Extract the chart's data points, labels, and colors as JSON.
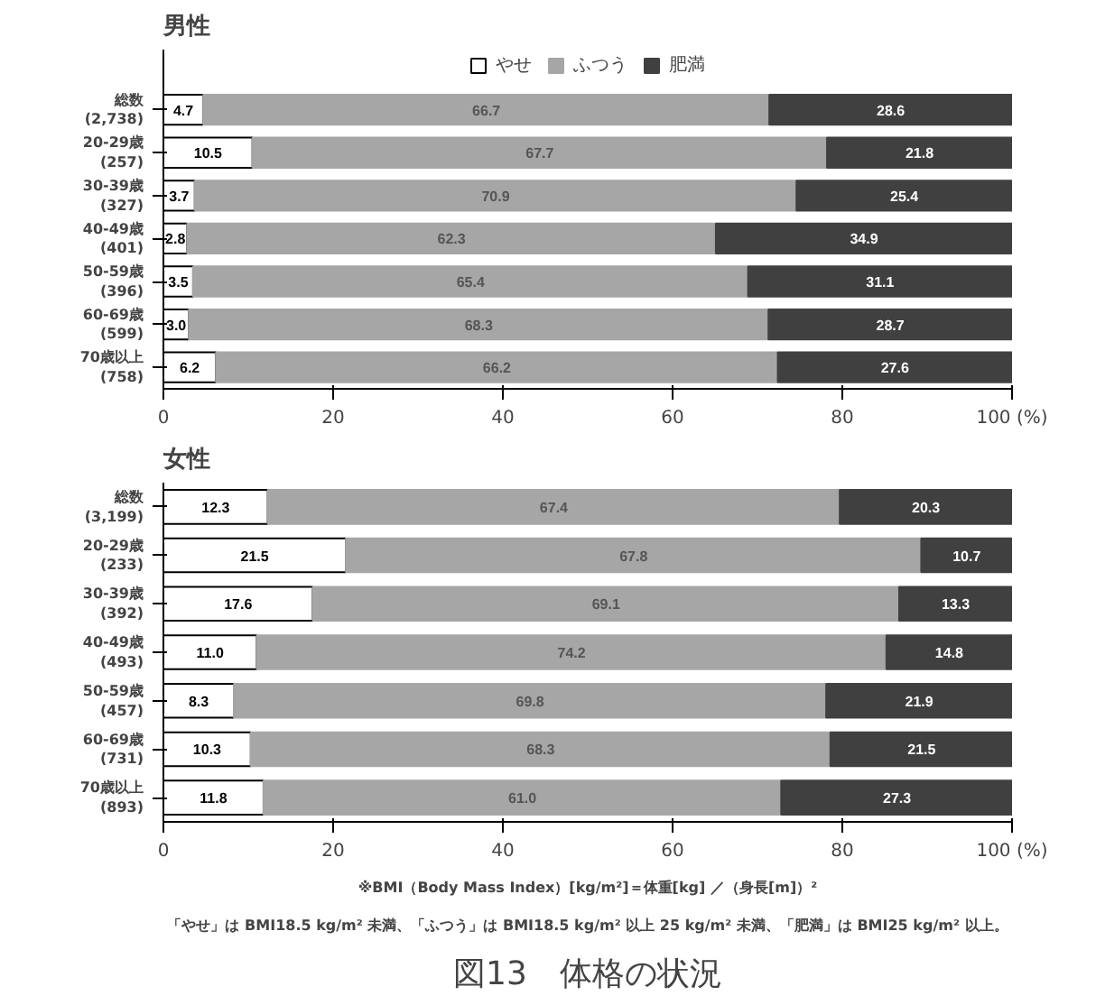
{
  "chart_data": [
    {
      "type": "bar",
      "orientation": "horizontal",
      "stacked": true,
      "title": "男性",
      "legend": "top",
      "data_labels": true,
      "grid": false,
      "categories": [
        "総数\n(2,738)",
        "20-29歳\n(257)",
        "30-39歳\n(327)",
        "40-49歳\n(401)",
        "50-59歳\n(396)",
        "60-69歳\n(599)",
        "70歳以上\n(758)"
      ],
      "xlim": [
        0,
        100
      ],
      "xticks": [
        0,
        20,
        40,
        60,
        80,
        {
          "value": 100,
          "label": "100 (%)"
        }
      ],
      "series": [
        {
          "name": "やせ",
          "color": "#ffffff",
          "values": [
            4.7,
            10.5,
            3.7,
            2.8,
            3.5,
            3.0,
            6.2
          ],
          "value_labels": [
            "4.7",
            "10.5",
            "3.7",
            "2.8",
            "3.5",
            "3.0",
            "6.2"
          ]
        },
        {
          "name": "ふつう",
          "color": "#a6a6a6",
          "values": [
            66.7,
            67.7,
            70.9,
            62.3,
            65.4,
            68.3,
            66.2
          ]
        },
        {
          "name": "肥満",
          "color": "#404040",
          "values": [
            28.6,
            21.8,
            25.4,
            34.9,
            31.1,
            28.7,
            27.6
          ]
        }
      ]
    },
    {
      "type": "bar",
      "orientation": "horizontal",
      "stacked": true,
      "title": "女性",
      "data_labels": true,
      "grid": false,
      "categories": [
        "総数\n(3,199)",
        "20-29歳\n(233)",
        "30-39歳\n(392)",
        "40-49歳\n(493)",
        "50-59歳\n(457)",
        "60-69歳\n(731)",
        "70歳以上\n(893)"
      ],
      "xlim": [
        0,
        100
      ],
      "xticks": [
        0,
        20,
        40,
        60,
        80,
        {
          "value": 100,
          "label": "100 (%)"
        }
      ],
      "series": [
        {
          "color": "#ffffff",
          "values": [
            12.3,
            21.5,
            17.6,
            11.0,
            8.3,
            10.3,
            11.8
          ],
          "value_labels": [
            "12.3",
            "21.5",
            "17.6",
            "11.0",
            "8.3",
            "10.3",
            "11.8"
          ]
        },
        {
          "color": "#a6a6a6",
          "values": [
            67.4,
            67.8,
            69.1,
            74.2,
            69.8,
            68.3,
            61.0
          ],
          "value_labels": [
            "67.4",
            "67.8",
            "69.1",
            "74.2",
            "69.8",
            "68.3",
            "61.0"
          ]
        },
        {
          "color": "#404040",
          "values": [
            20.3,
            10.7,
            13.3,
            14.8,
            21.9,
            21.5,
            27.3
          ]
        }
      ],
      "annotations": [
        "※BMI（Body Mass Index）[kg/m²]＝体重[kg] ／（身長[m]）²",
        "「やせ」は BMI18.5 kg/m² 未満、「ふつう」は BMI18.5 kg/m² 以上 25 kg/m² 未満、「肥満」は BMI25 kg/m² 以上。",
        "図13　体格の状況"
      ]
    }
  ]
}
